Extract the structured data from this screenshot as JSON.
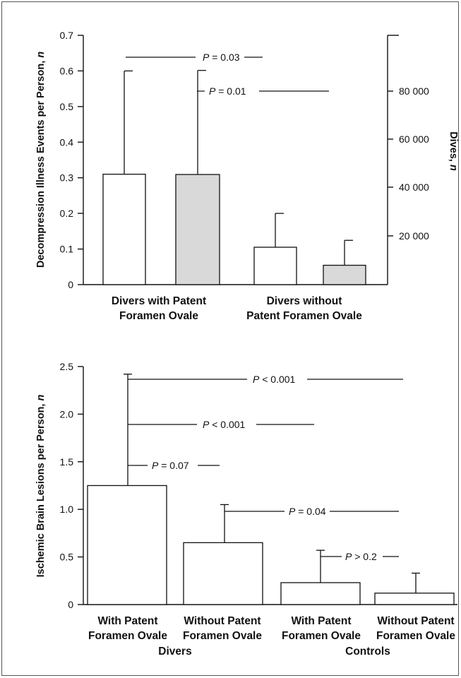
{
  "chart_data": [
    {
      "type": "bar",
      "ylabel_main": "Decompression Illness Events per Person, ",
      "ylabel_var": "n",
      "y2label_main": "Dives, ",
      "y2label_var": "n",
      "ylim": [
        0,
        0.7
      ],
      "y_ticks": [
        "0",
        "0.1",
        "0.2",
        "0.3",
        "0.4",
        "0.5",
        "0.6",
        "0.7"
      ],
      "y2lim": [
        0,
        103000
      ],
      "y2_ticks": [
        "20 000",
        "40 000",
        "60 000",
        "80 000"
      ],
      "categories": [
        {
          "line1": "Divers with Patent",
          "line2": "Foramen Ovale"
        },
        {
          "line1": "Divers without",
          "line2": "Patent Foramen Ovale"
        }
      ],
      "series": [
        {
          "axis": "left",
          "fill": "#ffffff",
          "values": [
            0.31,
            0.105
          ],
          "error_upper": [
            0.6,
            0.2
          ]
        },
        {
          "axis": "right",
          "fill": "#d9d9d9",
          "values": [
            45500,
            8000
          ],
          "error_upper": [
            88500,
            18300
          ]
        }
      ],
      "annotations": [
        {
          "p": "P",
          "text": " = 0.03"
        },
        {
          "p": "P",
          "text": " = 0.01"
        }
      ]
    },
    {
      "type": "bar",
      "ylabel_main": "Ischemic Brain Lesions per Person, ",
      "ylabel_var": "n",
      "ylim": [
        0,
        2.5
      ],
      "y_ticks": [
        "0",
        "0.5",
        "1.0",
        "1.5",
        "2.0",
        "2.5"
      ],
      "categories": [
        {
          "line1": "With Patent",
          "line2": "Foramen Ovale"
        },
        {
          "line1": "Without Patent",
          "line2": "Foramen Ovale"
        },
        {
          "line1": "With Patent",
          "line2": "Foramen Ovale"
        },
        {
          "line1": "Without Patent",
          "line2": "Foramen Ovale"
        }
      ],
      "groups": [
        "Divers",
        "Controls"
      ],
      "values": [
        1.25,
        0.65,
        0.23,
        0.12
      ],
      "error_upper": [
        2.42,
        1.05,
        0.57,
        0.33
      ],
      "annotations": [
        {
          "p": "P",
          "text": " < 0.001"
        },
        {
          "p": "P",
          "text": " < 0.001"
        },
        {
          "p": "P",
          "text": " = 0.07"
        },
        {
          "p": "P",
          "text": " = 0.04"
        },
        {
          "p": "P",
          "text": " > 0.2"
        }
      ]
    }
  ]
}
